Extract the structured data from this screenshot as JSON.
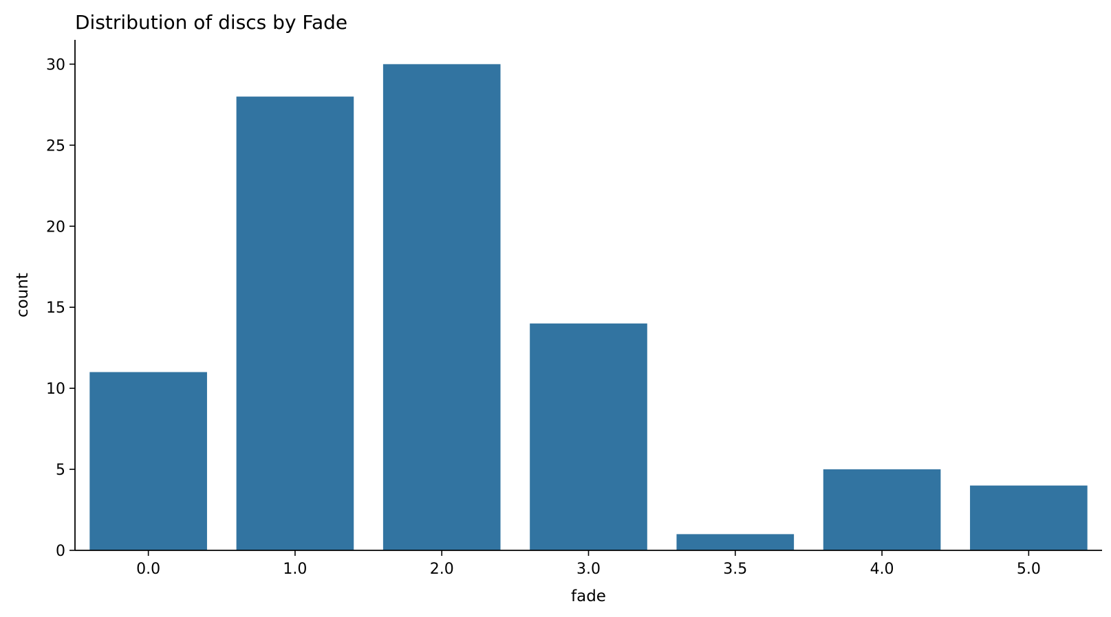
{
  "chart_data": {
    "type": "bar",
    "title": "Distribution of discs by Fade",
    "xlabel": "fade",
    "ylabel": "count",
    "categories": [
      "0.0",
      "1.0",
      "2.0",
      "3.0",
      "3.5",
      "4.0",
      "5.0"
    ],
    "values": [
      11,
      28,
      30,
      14,
      1,
      5,
      4
    ],
    "ylim": [
      0,
      31.5
    ],
    "yticks": [
      0,
      5,
      10,
      15,
      20,
      25,
      30
    ],
    "grid": false,
    "legend": "none",
    "bar_color": "#3274a1"
  }
}
